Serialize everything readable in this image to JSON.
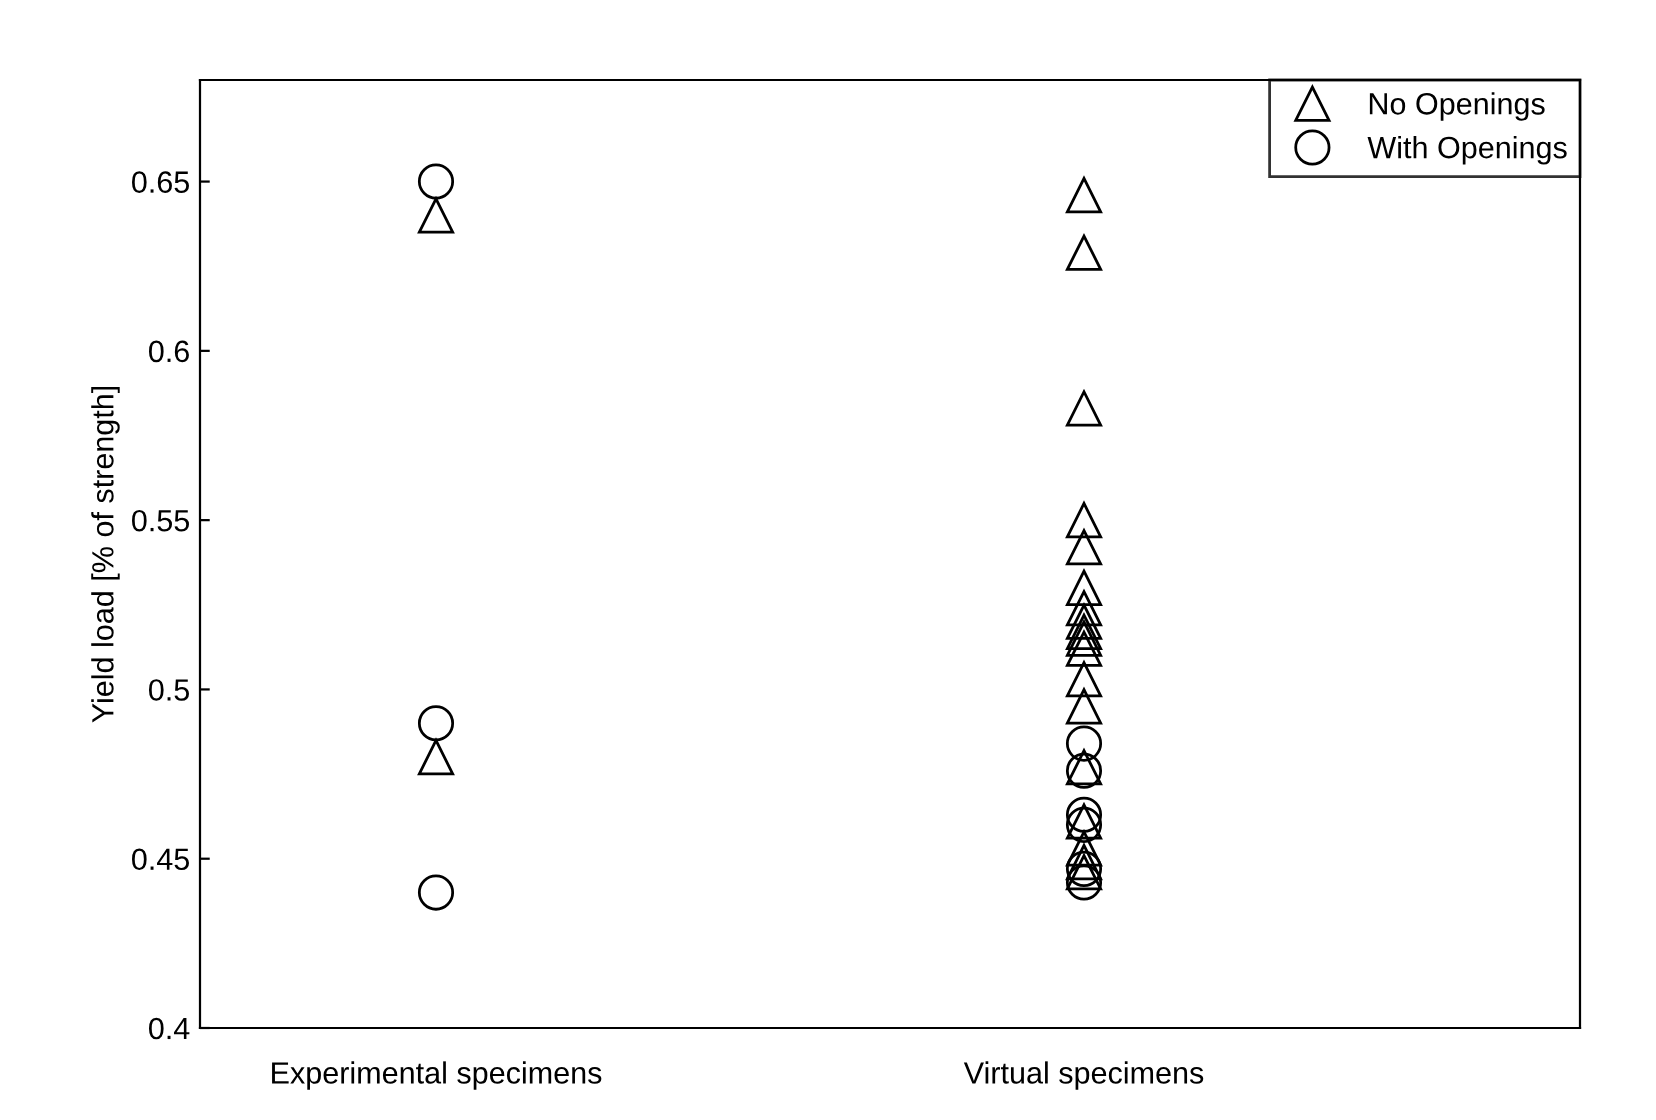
{
  "chart_data": {
    "type": "scatter",
    "ylabel": "Yield load [% of strength]",
    "categories": [
      "Experimental specimens",
      "Virtual specimens"
    ],
    "series": [
      {
        "name": "No Openings",
        "color": "#000000",
        "marker": "triangle",
        "x": [
          "Experimental specimens",
          "Experimental specimens",
          "Virtual specimens",
          "Virtual specimens",
          "Virtual specimens",
          "Virtual specimens",
          "Virtual specimens",
          "Virtual specimens",
          "Virtual specimens",
          "Virtual specimens",
          "Virtual specimens",
          "Virtual specimens",
          "Virtual specimens",
          "Virtual specimens",
          "Virtual specimens",
          "Virtual specimens",
          "Virtual specimens",
          "Virtual specimens",
          "Virtual specimens",
          "Virtual specimens"
        ],
        "values": [
          0.64,
          0.48,
          0.646,
          0.629,
          0.583,
          0.55,
          0.542,
          0.53,
          0.524,
          0.52,
          0.517,
          0.515,
          0.512,
          0.503,
          0.495,
          0.477,
          0.461,
          0.453,
          0.449,
          0.446
        ]
      },
      {
        "name": "With Openings",
        "color": "#000000",
        "marker": "circle",
        "x": [
          "Experimental specimens",
          "Experimental specimens",
          "Experimental specimens",
          "Virtual specimens",
          "Virtual specimens",
          "Virtual specimens",
          "Virtual specimens",
          "Virtual specimens",
          "Virtual specimens"
        ],
        "values": [
          0.65,
          0.49,
          0.44,
          0.484,
          0.476,
          0.463,
          0.46,
          0.447,
          0.443
        ]
      }
    ],
    "ylim": [
      0.4,
      0.68
    ],
    "yticks": [
      0.4,
      0.45,
      0.5,
      0.55,
      0.6,
      0.65
    ],
    "grid": false,
    "legend": "top right"
  }
}
